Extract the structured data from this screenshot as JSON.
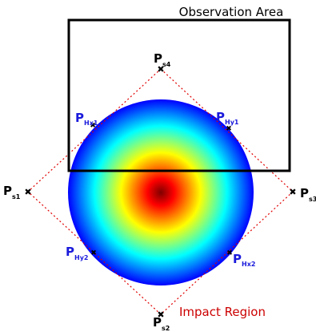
{
  "observation_area": {
    "label": "Observation Area",
    "color": "#000000"
  },
  "impact_region": {
    "label": "Impact Region",
    "color": "#cc0000"
  },
  "diamond_color": "#e00000",
  "heatmap": {
    "colormap": "jet",
    "stops": [
      "#7f0000",
      "#ff0000",
      "#ff8000",
      "#ffff00",
      "#80ff80",
      "#00ffff",
      "#0080ff",
      "#0000ff"
    ]
  },
  "points": {
    "s1": {
      "main": "P",
      "sub": "s1",
      "color": "#000000"
    },
    "s2": {
      "main": "P",
      "sub": "s2",
      "color": "#000000"
    },
    "s3": {
      "main": "P",
      "sub": "s3",
      "color": "#000000"
    },
    "s4": {
      "main": "P",
      "sub": "s4",
      "color": "#000000"
    },
    "hx1": {
      "main": "P",
      "sub": "Hx1",
      "color": "#1a1adc"
    },
    "hy1": {
      "main": "P",
      "sub": "Hy1",
      "color": "#1a1adc"
    },
    "hx2": {
      "main": "P",
      "sub": "Hx2",
      "color": "#1a1adc"
    },
    "hy2": {
      "main": "P",
      "sub": "Hy2",
      "color": "#1a1adc"
    }
  }
}
